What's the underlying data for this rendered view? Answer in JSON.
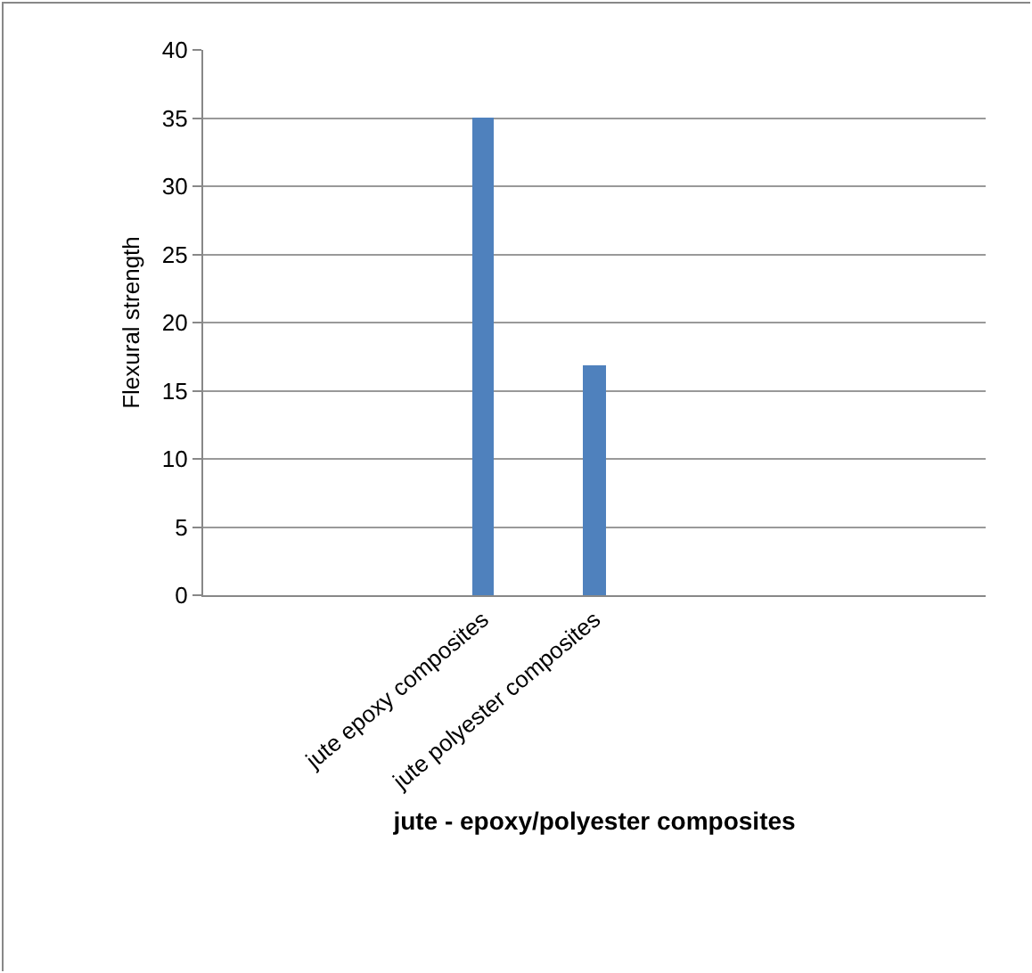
{
  "chart_data": {
    "type": "bar",
    "xlabel": "jute - epoxy/polyester composites",
    "ylabel": "Flexural strength",
    "categories": [
      null,
      null,
      "jute epoxy composites",
      "jute polyester composites",
      null,
      null,
      null
    ],
    "values": [
      null,
      null,
      35,
      16.8,
      null,
      null,
      null
    ],
    "color": "#4f81bd",
    "ylim": [
      0,
      40
    ],
    "yticks": [
      0,
      5,
      10,
      15,
      20,
      25,
      30,
      35,
      40
    ],
    "grid": "y"
  }
}
